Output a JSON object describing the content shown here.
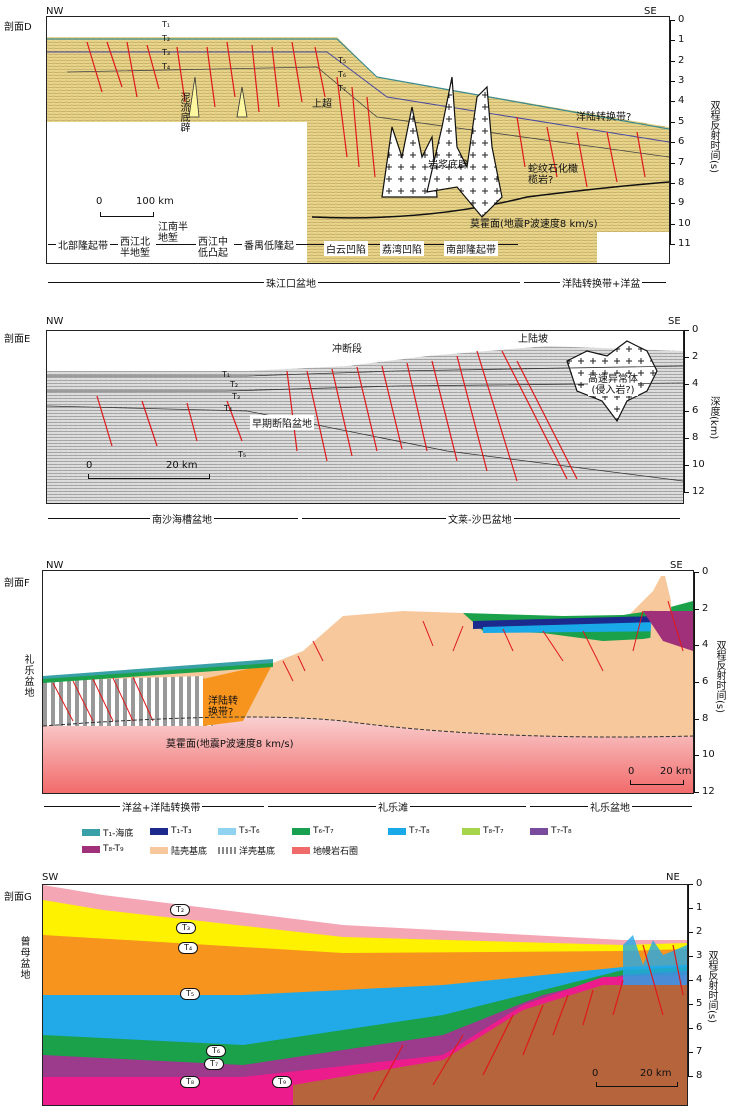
{
  "sectionD": {
    "title": "剖面D",
    "nw": "NW",
    "se": "SE",
    "axis_title": "双程反射时间(s)",
    "ticks": [
      "0",
      "1",
      "2",
      "3",
      "4",
      "5",
      "6",
      "7",
      "8",
      "9",
      "10",
      "11"
    ],
    "labels": {
      "mud_diapir": "泥流底辟",
      "magma_diapir": "岩浆底辟",
      "onlap": "上超",
      "ocean_transition_q": "洋陆转换带?",
      "serpentinite": "蛇纹石化橄榄岩?",
      "moho": "莫霍面(地震P波速度8 km/s)",
      "scale": "100 km",
      "scale0": "0"
    },
    "horizons": [
      "T₁",
      "T₂",
      "T₃",
      "T₄",
      "T₅",
      "T₆",
      "T₇"
    ],
    "regions": [
      "北部隆起带",
      "西江北半地堑",
      "江南半地堑",
      "西江中低凸起",
      "番禺低隆起",
      "白云凹陷",
      "荔湾凹陷",
      "南部隆起带"
    ],
    "basins": [
      "珠江口盆地",
      "洋陆转换带+洋盆"
    ]
  },
  "sectionE": {
    "title": "剖面E",
    "nw": "NW",
    "se": "SE",
    "axis_title": "深度(km)",
    "ticks": [
      "0",
      "2",
      "4",
      "6",
      "8",
      "10",
      "12"
    ],
    "labels": {
      "thrust": "冲断段",
      "upper_slope": "上陆坡",
      "high_velocity": "高速异常体(侵入岩?)",
      "early_basin": "早期断陷盆地",
      "scale": "20 km",
      "scale0": "0"
    },
    "horizons": [
      "T₁",
      "T₂",
      "T₃",
      "T₄",
      "T₅"
    ],
    "basins": [
      "南沙海槽盆地",
      "文莱-沙巴盆地"
    ]
  },
  "sectionF": {
    "title": "剖面F",
    "nw": "NW",
    "se": "SE",
    "axis_title": "双程反射时间(s)",
    "ticks": [
      "0",
      "2",
      "4",
      "6",
      "8",
      "10",
      "12"
    ],
    "labels": {
      "reed_basin": "礼乐盆地",
      "transition": "洋陆转换带?",
      "moho": "莫霍面(地震P波速度8 km/s)",
      "scale": "20 km",
      "scale0": "0"
    },
    "basins": [
      "洋盆+洋陆转换带",
      "礼乐滩",
      "礼乐盆地"
    ],
    "legend": [
      {
        "label": "T₁-海底",
        "color": "#3aa0a8"
      },
      {
        "label": "T₁-T₃",
        "color": "#1b2a8c"
      },
      {
        "label": "T₃-T₆",
        "color": "#8fd3f0"
      },
      {
        "label": "T₆-T₇",
        "color": "#18a050"
      },
      {
        "label": "T₇-T₈",
        "color": "#19a8e8"
      },
      {
        "label": "T₈-T₇",
        "color": "#a6d44a"
      },
      {
        "label": "T₇-T₈",
        "color": "#7a4a9c"
      },
      {
        "label": "T₈-T₉",
        "color": "#a0307a"
      },
      {
        "label": "陆壳基底",
        "color": "#f7c89c"
      },
      {
        "label": "洋壳基底",
        "color": "#999999"
      },
      {
        "label": "地幔岩石圈",
        "color": "#f06a6a"
      }
    ]
  },
  "sectionG": {
    "title": "剖面G",
    "sw": "SW",
    "ne": "NE",
    "axis_title": "双程反射时间(s)",
    "ticks": [
      "0",
      "1",
      "2",
      "3",
      "4",
      "5",
      "6",
      "7",
      "8"
    ],
    "labels": {
      "basin": "曾母盆地",
      "scale": "20 km",
      "scale0": "0"
    },
    "horizons": [
      "T₂",
      "T₃",
      "T₄",
      "T₅",
      "T₆",
      "T₇",
      "T₈",
      "T₉"
    ]
  },
  "colors": {
    "fault": "#e0181b",
    "yellow": "#fff200",
    "orange": "#f7941d",
    "blue": "#22a9e8",
    "green": "#1aa14a",
    "purple": "#9c3a8c",
    "magenta": "#ec1c8c",
    "pink": "#f4a6b4",
    "brown": "#b5643c"
  }
}
